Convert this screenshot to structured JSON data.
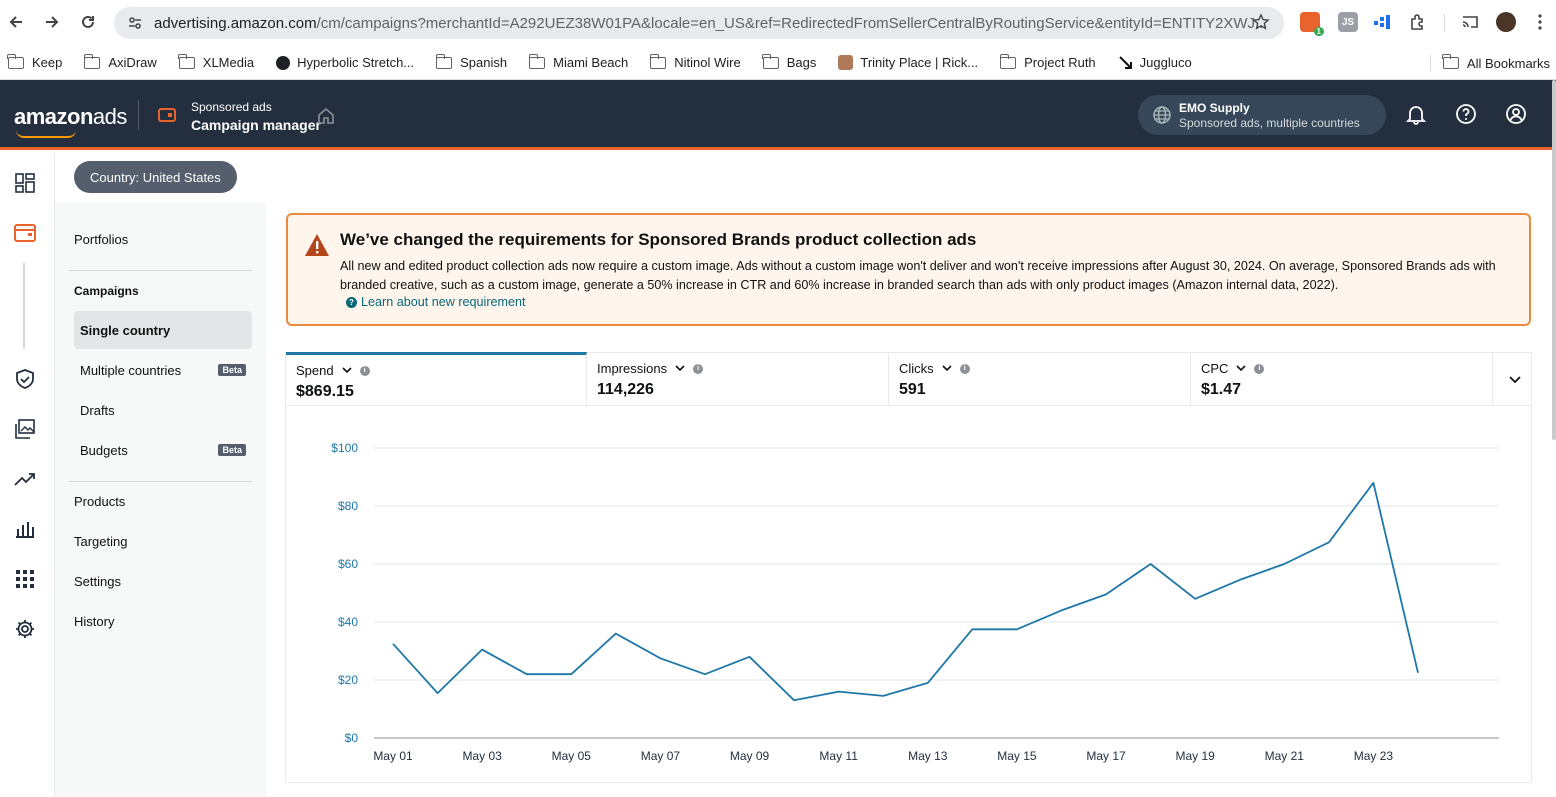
{
  "browser": {
    "url_host": "advertising.amazon.com",
    "url_path": "/cm/campaigns?merchantId=A292UEZ38W01PA&locale=en_US&ref=RedirectedFromSellerCentralByRoutingService&entityId=ENTITY2XWJ...",
    "ext_badge": "1",
    "ext_js": "JS",
    "bookmarks": [
      "Keep",
      "AxiDraw",
      "XLMedia",
      "Hyperbolic Stretch...",
      "Spanish",
      "Miami Beach",
      "Nitinol Wire",
      "Bags",
      "Trinity Place | Rick...",
      "Project Ruth",
      "Juggluco"
    ],
    "all_bookmarks": "All Bookmarks"
  },
  "header": {
    "logo_a": "amazon",
    "logo_b": "ads",
    "product_line1": "Sponsored ads",
    "product_line2": "Campaign manager",
    "account_name": "EMO Supply",
    "account_sub": "Sponsored ads, multiple countries"
  },
  "country_pill": "Country: United States",
  "sidenav": {
    "portfolios": "Portfolios",
    "campaigns_group": "Campaigns",
    "single_country": "Single country",
    "multiple_countries": "Multiple countries",
    "drafts": "Drafts",
    "budgets": "Budgets",
    "beta": "Beta",
    "products": "Products",
    "targeting": "Targeting",
    "settings": "Settings",
    "history": "History"
  },
  "alert": {
    "title": "We’ve changed the requirements for Sponsored Brands product collection ads",
    "body": "All new and edited product collection ads now require a custom image. Ads without a custom image won't deliver and won't receive impressions after August 30, 2024. On average, Sponsored Brands ads with branded creative, such as a custom image, generate a 50% increase in CTR and 60% increase in branded search than ads with only product images (Amazon internal data, 2022).",
    "link": "Learn about new requirement",
    "info_glyph": "?"
  },
  "metrics": [
    {
      "label": "Spend",
      "value": "$869.15"
    },
    {
      "label": "Impressions",
      "value": "114,226"
    },
    {
      "label": "Clicks",
      "value": "591"
    },
    {
      "label": "CPC",
      "value": "$1.47"
    }
  ],
  "colors": {
    "header_bg": "#232f3e",
    "accent_orange": "#e9642c",
    "line": "#1f77a8",
    "link": "#076977"
  },
  "chart_data": {
    "type": "line",
    "x": [
      "May 01",
      "May 02",
      "May 03",
      "May 04",
      "May 05",
      "May 06",
      "May 07",
      "May 08",
      "May 09",
      "May 10",
      "May 11",
      "May 12",
      "May 13",
      "May 14",
      "May 15",
      "May 16",
      "May 17",
      "May 18",
      "May 19",
      "May 20",
      "May 21",
      "May 22",
      "May 23",
      "May 24"
    ],
    "x_tick_labels": [
      "May 01",
      "May 03",
      "May 05",
      "May 07",
      "May 09",
      "May 11",
      "May 13",
      "May 15",
      "May 17",
      "May 19",
      "May 21",
      "May 23"
    ],
    "series": [
      {
        "values": [
          32.5,
          15.5,
          30.5,
          22,
          22,
          36,
          27.5,
          22,
          28,
          13,
          16,
          14.5,
          19,
          37.5,
          37.5,
          44,
          49.5,
          60,
          48,
          54.5,
          60,
          67.5,
          88,
          22.5
        ]
      }
    ],
    "y_ticks": [
      "$0",
      "$20",
      "$40",
      "$60",
      "$80",
      "$100"
    ],
    "ylim": [
      0,
      100
    ],
    "grid": true
  }
}
